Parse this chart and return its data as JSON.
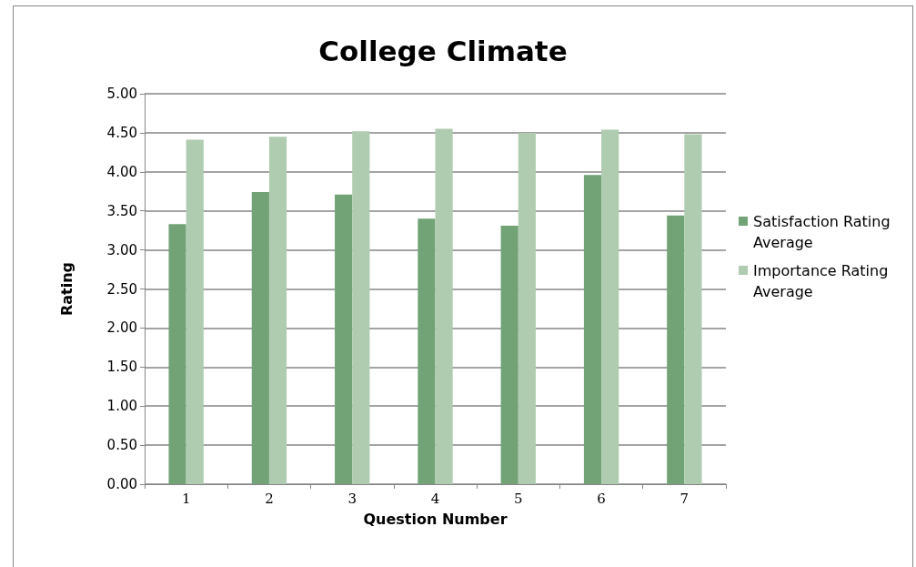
{
  "chart_data": {
    "type": "bar",
    "title": "College Climate",
    "xlabel": "Question Number",
    "ylabel": "Rating",
    "categories": [
      "1",
      "2",
      "3",
      "4",
      "5",
      "6",
      "7"
    ],
    "series": [
      {
        "name": "Satisfaction Rating Average",
        "color": "#71a376",
        "values": [
          3.33,
          3.74,
          3.71,
          3.4,
          3.31,
          3.96,
          3.44
        ]
      },
      {
        "name": "Importance Rating Average",
        "color": "#afccb0",
        "values": [
          4.41,
          4.45,
          4.52,
          4.55,
          4.5,
          4.54,
          4.48
        ]
      }
    ],
    "ylim": [
      0,
      5
    ],
    "yticks": [
      {
        "value": 0,
        "label": "0.00"
      },
      {
        "value": 0.5,
        "label": "0.50"
      },
      {
        "value": 1,
        "label": "1.00"
      },
      {
        "value": 1.5,
        "label": "1.50"
      },
      {
        "value": 2,
        "label": "2.00"
      },
      {
        "value": 2.5,
        "label": "2.50"
      },
      {
        "value": 3,
        "label": "3.00"
      },
      {
        "value": 3.5,
        "label": "3.50"
      },
      {
        "value": 4,
        "label": "4.00"
      },
      {
        "value": 4.5,
        "label": "4.50"
      },
      {
        "value": 5,
        "label": "5.00"
      }
    ],
    "grid": "y",
    "legend": "right"
  }
}
